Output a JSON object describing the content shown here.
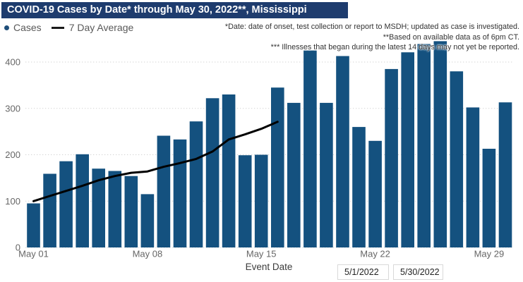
{
  "title": "COVID-19 Cases by Date* through May 30, 2022**, Mississippi",
  "legend": {
    "cases_label": "Cases",
    "avg_label": "7 Day Average"
  },
  "footnotes": [
    "*Date: date of onset, test collection or report to MSDH; updated as case is investigated.",
    "**Based on available data as of 6pm CT.",
    "*** Illnesses that began during the latest 14 days may not yet be reported."
  ],
  "filters": {
    "start_date": "5/1/2022",
    "end_date": "5/30/2022"
  },
  "colors": {
    "title_bar_bg": "#1e3c6e",
    "bar": "#14517f",
    "line": "#000000",
    "legend_dot": "#1f4e79",
    "axis_text": "#666666",
    "axis_title_text": "#3c3c3c",
    "gridline": "#d2d2d2"
  },
  "chart_data": {
    "type": "bar",
    "title": "COVID-19 Cases by Date* through May 30, 2022**, Mississippi",
    "categories": [
      "May 01",
      "May 02",
      "May 03",
      "May 04",
      "May 05",
      "May 06",
      "May 07",
      "May 08",
      "May 09",
      "May 10",
      "May 11",
      "May 12",
      "May 13",
      "May 14",
      "May 15",
      "May 16",
      "May 17",
      "May 18",
      "May 19",
      "May 20",
      "May 21",
      "May 22",
      "May 23",
      "May 24",
      "May 25",
      "May 26",
      "May 27",
      "May 28",
      "May 29",
      "May 30"
    ],
    "series": [
      {
        "name": "Cases",
        "type": "bar",
        "values": [
          95,
          159,
          186,
          201,
          170,
          165,
          154,
          115,
          241,
          233,
          272,
          322,
          330,
          199,
          200,
          345,
          312,
          425,
          312,
          413,
          260,
          230,
          385,
          421,
          439,
          445,
          380,
          302,
          213,
          313
        ]
      },
      {
        "name": "7 Day Average",
        "type": "line",
        "values": [
          100,
          111,
          122,
          133,
          145,
          154,
          161,
          164,
          174,
          182,
          191,
          207,
          233,
          244,
          256,
          271
        ]
      }
    ],
    "xlabel": "Event Date",
    "ylabel": "",
    "x_tick_labels": [
      "May 01",
      "May 08",
      "May 15",
      "May 22",
      "May 29"
    ],
    "x_tick_indices": [
      0,
      7,
      14,
      21,
      28
    ],
    "y_ticks": [
      0,
      100,
      200,
      300,
      400
    ],
    "ylim": [
      0,
      450
    ],
    "grid": "horizontal-dotted",
    "legend_position": "top-left"
  }
}
